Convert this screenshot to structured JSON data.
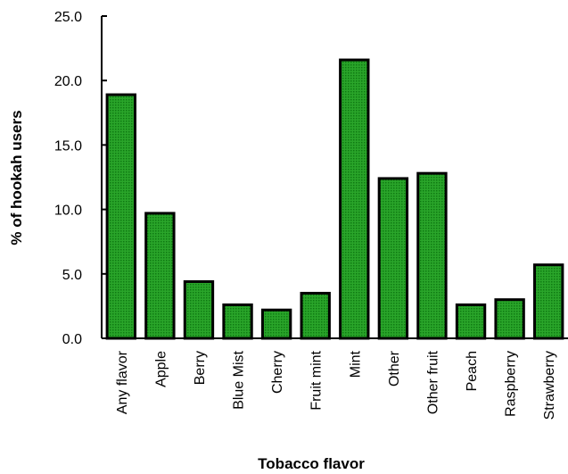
{
  "colors": {
    "bar_fill": "#1f9b1f",
    "bar_stroke": "#000000",
    "axis": "#000000",
    "background": "#ffffff"
  },
  "chart_data": {
    "type": "bar",
    "title": "",
    "xlabel": "Tobacco flavor",
    "ylabel": "% of hookah users",
    "ylim": [
      0,
      25
    ],
    "yticks": [
      "0.0",
      "5.0",
      "10.0",
      "15.0",
      "20.0",
      "25.0"
    ],
    "grid": false,
    "legend": "none",
    "categories": [
      "Any flavor",
      "Apple",
      "Berry",
      "Blue Mist",
      "Cherry",
      "Fruit mint",
      "Mint",
      "Other",
      "Other fruit",
      "Peach",
      "Raspberry",
      "Strawberry"
    ],
    "values": [
      18.9,
      9.7,
      4.4,
      2.6,
      2.2,
      3.5,
      21.6,
      12.4,
      12.8,
      2.6,
      3.0,
      5.7
    ]
  }
}
